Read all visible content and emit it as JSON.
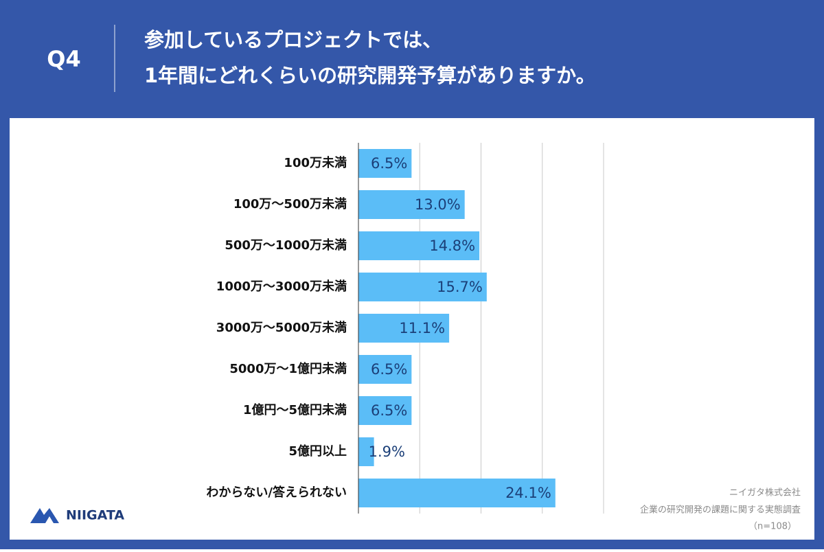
{
  "header": {
    "question": "Q4",
    "title": [
      "参加しているプロジェクトでは、",
      "1年間にどれくらいの研究開発予算がありますか。"
    ]
  },
  "chart_data": {
    "type": "bar",
    "orientation": "horizontal",
    "categories": [
      "100万未満",
      "100万〜500万未満",
      "500万〜1000万未満",
      "1000万〜3000万未満",
      "3000万〜5000万未満",
      "5000万〜1億円未満",
      "1億円〜5億円未満",
      "5億円以上",
      "わからない/答えられない"
    ],
    "values": [
      6.5,
      13.0,
      14.8,
      15.7,
      11.1,
      6.5,
      6.5,
      1.9,
      24.1
    ],
    "value_labels": [
      "6.5%",
      "13.0%",
      "14.8%",
      "15.7%",
      "11.1%",
      "6.5%",
      "6.5%",
      "1.9%",
      "24.1%"
    ],
    "color": "#5bbdf7",
    "xlim": [
      0,
      30
    ],
    "xticks": [
      0,
      7.5,
      15,
      22.5,
      30
    ],
    "grid": true
  },
  "footer": {
    "logo": "NIIGATA",
    "credits": [
      "ニイガタ株式会社",
      "企業の研究開発の課題に関する実態調査",
      "（n=108）"
    ]
  }
}
